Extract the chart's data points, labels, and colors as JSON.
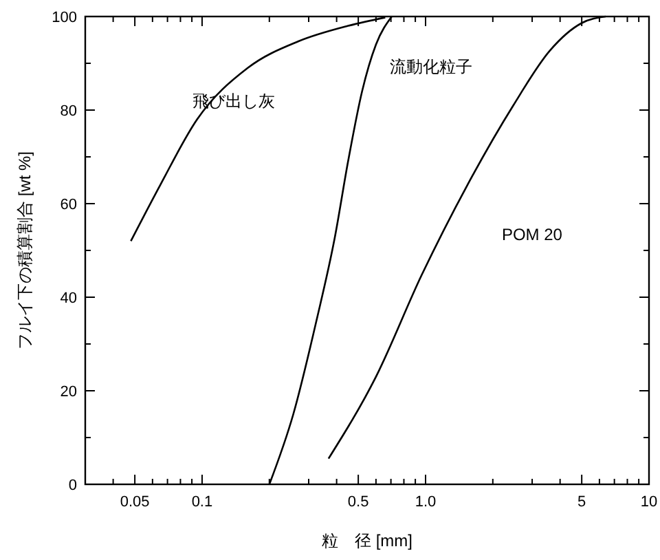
{
  "chart_data": {
    "type": "line",
    "xlabel": "粒　径 [mm]",
    "ylabel": "フルイ下の積算割合 [wt %]",
    "log": "x",
    "grid": false,
    "legend": false,
    "marker": "none",
    "line_style": "solid",
    "xlim": [
      0.03,
      10
    ],
    "ylim": [
      0,
      100
    ],
    "xticks": [
      {
        "value": 0.03,
        "label": null
      },
      {
        "value": 0.04,
        "label": null
      },
      0.05,
      {
        "value": 0.06,
        "label": null
      },
      {
        "value": 0.07,
        "label": null
      },
      {
        "value": 0.08,
        "label": null
      },
      {
        "value": 0.09,
        "label": null
      },
      0.1,
      {
        "value": 0.2,
        "label": null
      },
      {
        "value": 0.3,
        "label": null
      },
      {
        "value": 0.4,
        "label": null
      },
      0.5,
      {
        "value": 0.6,
        "label": null
      },
      {
        "value": 0.7,
        "label": null
      },
      {
        "value": 0.8,
        "label": null
      },
      {
        "value": 0.9,
        "label": null
      },
      {
        "value": 1,
        "label": "1.0"
      },
      {
        "value": 2,
        "label": null
      },
      {
        "value": 3,
        "label": null
      },
      {
        "value": 4,
        "label": null
      },
      5,
      {
        "value": 6,
        "label": null
      },
      {
        "value": 7,
        "label": null
      },
      {
        "value": 8,
        "label": null
      },
      {
        "value": 9,
        "label": null
      },
      10
    ],
    "yticks": [
      0,
      {
        "value": 10,
        "label": null
      },
      20,
      {
        "value": 30,
        "label": null
      },
      40,
      {
        "value": 50,
        "label": null
      },
      60,
      {
        "value": 70,
        "label": null
      },
      80,
      {
        "value": 90,
        "label": null
      },
      100
    ],
    "series": [
      {
        "name": "飛び出し灰",
        "color": "#000000",
        "x": [
          0.048,
          0.065,
          0.095,
          0.16,
          0.27,
          0.45,
          0.66
        ],
        "values": [
          52,
          64,
          78,
          89,
          94.7,
          98,
          99.8
        ]
      },
      {
        "name": "流動化粒子",
        "color": "#000000",
        "x": [
          0.2,
          0.256,
          0.325,
          0.392,
          0.45,
          0.52,
          0.6,
          0.706
        ],
        "values": [
          0,
          15,
          35,
          52.6,
          69,
          84,
          94,
          100
        ]
      },
      {
        "name": "POM 20",
        "color": "#000000",
        "x": [
          0.368,
          0.6,
          0.96,
          1.54,
          2.47,
          3.6,
          5.0,
          6.4
        ],
        "values": [
          5.5,
          23,
          44.7,
          64,
          81,
          92.7,
          98.6,
          100
        ]
      }
    ]
  }
}
